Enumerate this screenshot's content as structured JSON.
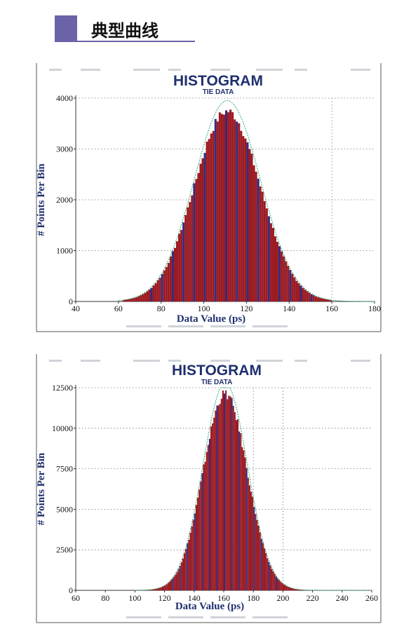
{
  "header": {
    "title": "典型曲线",
    "accent": "#6b63a8"
  },
  "colors": {
    "bar": "#9b1b22",
    "bar_edge": "#3a2a7a",
    "fit": "#2aa774",
    "frame": "#555555",
    "title": "#1f2f6e"
  },
  "chart_data": [
    {
      "type": "bar",
      "title": "HISTOGRAM",
      "subtitle": "TIE DATA",
      "xlabel": "Data Value (ps)",
      "ylabel": "# Points Per Bin",
      "xlim": [
        40,
        180
      ],
      "ylim": [
        0,
        4000
      ],
      "xticks": [
        "40",
        "60",
        "80",
        "100",
        "120",
        "140",
        "160",
        "180"
      ],
      "yticks": [
        "0",
        "1000",
        "2000",
        "3000",
        "4000"
      ],
      "grid": "dotted",
      "vlines": [
        160
      ],
      "distribution": {
        "mean": 111,
        "sigma": 15.5,
        "peak": 3800,
        "bin_width": 1,
        "x_range": [
          62,
          160
        ]
      }
    },
    {
      "type": "bar",
      "title": "HISTOGRAM",
      "subtitle": "TIE DATA",
      "xlabel": "Data Value (ps)",
      "ylabel": "# Points Per Bin",
      "xlim": [
        60,
        260
      ],
      "ylim": [
        0,
        12500
      ],
      "xticks": [
        "60",
        "80",
        "100",
        "120",
        "140",
        "160",
        "180",
        "200",
        "220",
        "240",
        "260"
      ],
      "yticks": [
        "0",
        "2500",
        "5000",
        "7500",
        "10000",
        "12500"
      ],
      "grid": "dotted",
      "vlines": [
        180,
        200
      ],
      "distribution": {
        "mean": 161,
        "sigma": 15,
        "peak": 12300,
        "bin_width": 1,
        "x_range": [
          102,
          226
        ]
      }
    }
  ]
}
